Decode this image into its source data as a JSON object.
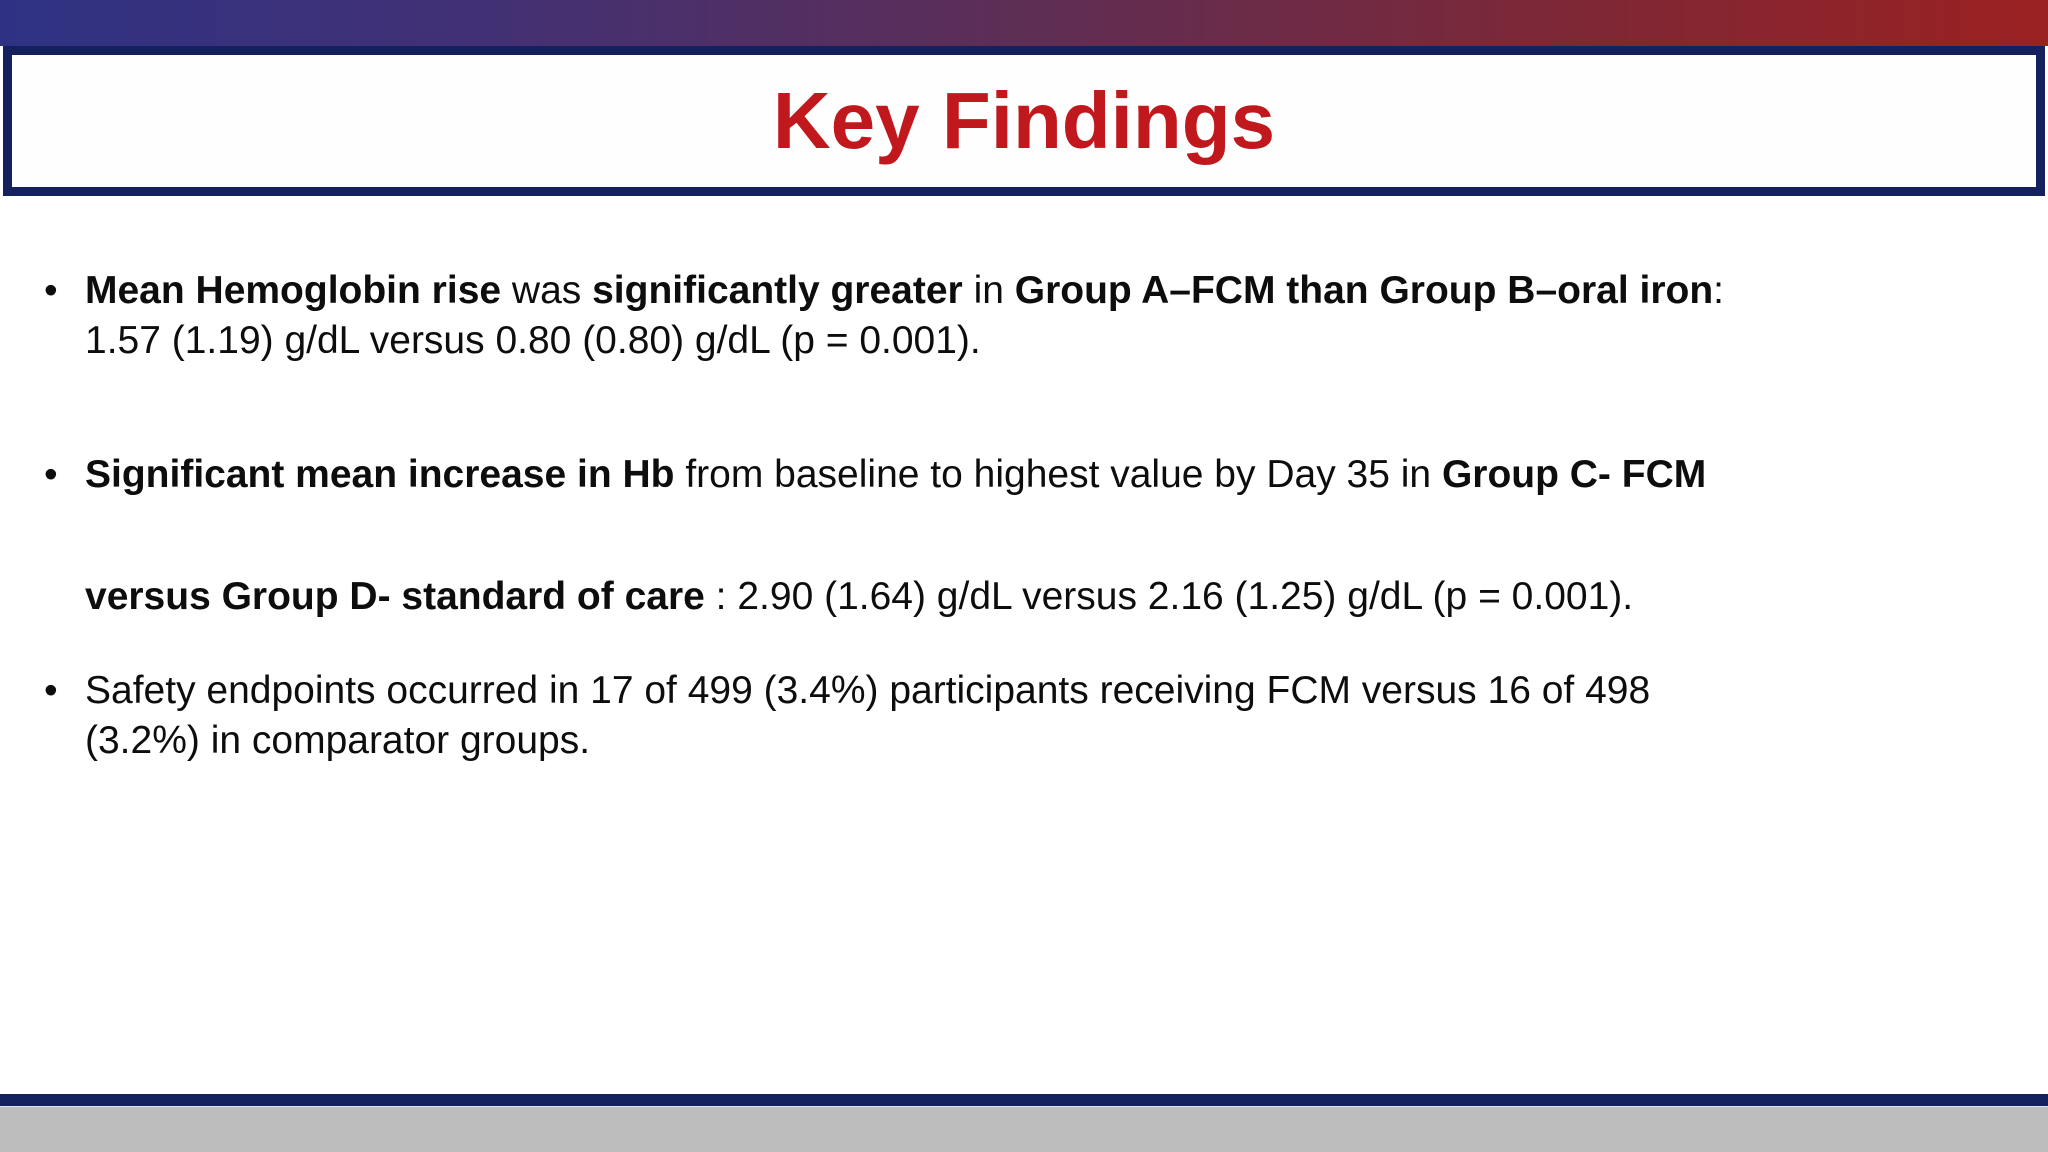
{
  "title": {
    "text": "Key Findings",
    "color": "#c0181c"
  },
  "colors": {
    "top_gradient_left": "#2f3284",
    "top_gradient_middle": "#5e2e55",
    "top_gradient_right": "#9a2121",
    "border_navy": "#14215e",
    "footer_gray": "#bdbdbd",
    "body_text": "#0d0d0d"
  },
  "bullet_marker": "•",
  "bullets": [
    {
      "lines": [
        [
          {
            "t": "Mean Hemoglobin rise",
            "b": true
          },
          {
            "t": " was ",
            "b": false
          },
          {
            "t": "significantly greater",
            "b": true
          },
          {
            "t": " in ",
            "b": false
          },
          {
            "t": "Group A–FCM than Group B–oral iron",
            "b": true
          },
          {
            "t": ":",
            "b": false
          }
        ],
        [
          {
            "t": "1.57 (1.19) g/dL versus 0.80 (0.80) g/dL (p = 0.001).",
            "b": false
          }
        ]
      ]
    },
    {
      "lines": [
        [
          {
            "t": "Significant mean increase in Hb",
            "b": true
          },
          {
            "t": " from baseline to highest value by Day 35 in ",
            "b": false
          },
          {
            "t": "Group C- FCM",
            "b": true
          }
        ],
        [
          {
            "t": "versus Group D- standard of care",
            "b": true
          },
          {
            "t": " : 2.90 (1.64) g/dL versus 2.16 (1.25) g/dL (p = 0.001).",
            "b": false
          }
        ]
      ]
    },
    {
      "lines": [
        [
          {
            "t": "Safety endpoints occurred in 17 of 499 (3.4%) participants receiving FCM versus 16 of 498",
            "b": false
          }
        ],
        [
          {
            "t": "(3.2%) in comparator groups.",
            "b": false
          }
        ]
      ]
    }
  ]
}
